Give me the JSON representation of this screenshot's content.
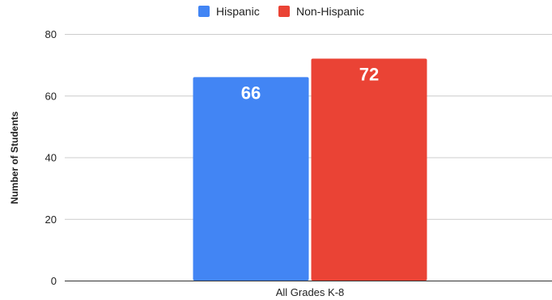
{
  "chart_data": {
    "type": "bar",
    "categories": [
      "All Grades K-8"
    ],
    "series": [
      {
        "name": "Hispanic",
        "values": [
          66
        ],
        "color": "#4285F4"
      },
      {
        "name": "Non-Hispanic",
        "values": [
          72
        ],
        "color": "#EA4335"
      }
    ],
    "ylabel": "Number of Students",
    "ylim": [
      0,
      80
    ],
    "yticks": [
      "0",
      "20",
      "40",
      "60",
      "80"
    ],
    "data_labels": [
      "66",
      "72"
    ],
    "legend_position": "top",
    "grid": true
  }
}
